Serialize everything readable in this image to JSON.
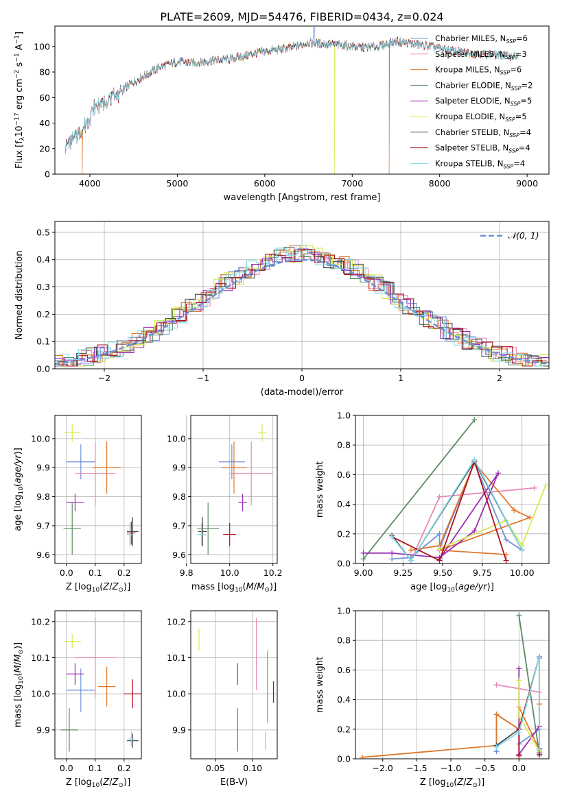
{
  "figure": {
    "title": "PLATE=2609, MJD=54476, FIBERID=0434, z=0.024"
  },
  "series_styles": [
    {
      "name": "Chabrier MILES",
      "nssp": "6",
      "color": "#6f8fd8"
    },
    {
      "name": "Salpeter MILES",
      "nssp": "3",
      "color": "#e88ab7"
    },
    {
      "name": "Kroupa MILES",
      "nssp": "6",
      "color": "#e0782a"
    },
    {
      "name": "Chabrier ELODIE",
      "nssp": "2",
      "color": "#5a8a5f"
    },
    {
      "name": "Salpeter ELODIE",
      "nssp": "5",
      "color": "#9b2db5"
    },
    {
      "name": "Kroupa ELODIE",
      "nssp": "5",
      "color": "#d4ea50"
    },
    {
      "name": "Chabrier STELIB",
      "nssp": "4",
      "color": "#4a4a4a"
    },
    {
      "name": "Salpeter STELIB",
      "nssp": "4",
      "color": "#b01020"
    },
    {
      "name": "Kroupa STELIB",
      "nssp": "4",
      "color": "#80d8e8"
    }
  ],
  "chart_data": [
    {
      "id": "spectrum",
      "type": "line",
      "xlabel": "wavelength [Angstrom, rest frame]",
      "ylabel": "Flux [f",
      "xlim": [
        3600,
        9250
      ],
      "ylim": [
        0,
        116
      ],
      "xticks": [
        4000,
        5000,
        6000,
        7000,
        8000,
        9000
      ],
      "yticks": [
        0,
        20,
        40,
        60,
        80,
        100
      ],
      "series": [
        {
          "name": "Chabrier MILES",
          "x": [
            3720,
            3850,
            3950,
            4050,
            4200,
            4300,
            4450,
            4600,
            4800,
            5000,
            5200,
            5400,
            5600,
            5800,
            5900,
            6100,
            6300,
            6500,
            6700,
            6900,
            7100,
            7300,
            7500,
            7700,
            7900,
            8100,
            8300,
            8500,
            8700,
            8900
          ],
          "y": [
            22,
            30,
            38,
            52,
            58,
            62,
            70,
            76,
            84,
            88,
            87,
            89,
            90,
            93,
            95,
            97,
            99,
            103,
            102,
            101,
            99,
            100,
            104,
            102,
            100,
            97,
            95,
            94,
            93,
            92
          ]
        },
        {
          "name": "Kroupa STELIB",
          "x": [
            3720,
            3850,
            3950,
            4050,
            4200,
            4300,
            4450,
            4600,
            4800,
            5000,
            5200,
            5400,
            5600,
            5800,
            5900,
            6100,
            6300,
            6500,
            6700,
            6900,
            7100,
            7300,
            7500,
            7700,
            7900,
            8100,
            8300,
            8500,
            8700,
            8900
          ],
          "y": [
            21,
            31,
            37,
            50,
            57,
            61,
            69,
            75,
            83,
            87,
            86,
            88,
            89,
            92,
            94,
            96,
            98,
            102,
            101,
            100,
            98,
            99,
            103,
            101,
            99,
            96,
            94,
            93,
            92,
            91
          ]
        }
      ]
    },
    {
      "id": "residual-histogram",
      "type": "bar",
      "xlabel": "(data-model)/error",
      "ylabel": "Normed distribution",
      "xlim": [
        -2.5,
        2.5
      ],
      "ylim": [
        0,
        0.54
      ],
      "xticks": [
        -2,
        -1,
        0,
        1,
        2
      ],
      "yticks": [
        0.0,
        0.1,
        0.2,
        0.3,
        0.4,
        0.5
      ],
      "legend": "N(0,1)",
      "normal_mu": 0,
      "normal_sigma": 1
    },
    {
      "id": "age-vs-Z",
      "type": "scatter",
      "xlabel": "Z [log",
      "ylabel": "age  [log",
      "xlim": [
        -0.04,
        0.26
      ],
      "ylim": [
        9.57,
        10.08
      ],
      "xticks": [
        0.0,
        0.1,
        0.2
      ],
      "yticks": [
        9.6,
        9.7,
        9.8,
        9.9,
        10.0
      ],
      "points": [
        {
          "s": 0,
          "x": 0.05,
          "y": 9.92,
          "xe": 0.05,
          "ye": 0.06
        },
        {
          "s": 1,
          "x": 0.1,
          "y": 9.88,
          "xe": 0.07,
          "ye": 0.11
        },
        {
          "s": 2,
          "x": 0.14,
          "y": 9.9,
          "xe": 0.05,
          "ye": 0.09
        },
        {
          "s": 3,
          "x": 0.02,
          "y": 9.69,
          "xe": 0.03,
          "ye": 0.09
        },
        {
          "s": 4,
          "x": 0.03,
          "y": 9.78,
          "xe": 0.03,
          "ye": 0.03
        },
        {
          "s": 5,
          "x": 0.02,
          "y": 10.02,
          "xe": 0.03,
          "ye": 0.03
        },
        {
          "s": 6,
          "x": 0.23,
          "y": 9.68,
          "xe": 0.02,
          "ye": 0.05
        },
        {
          "s": 7,
          "x": 0.225,
          "y": 9.675,
          "xe": 0.015,
          "ye": 0.04
        },
        {
          "s": 8,
          "x": 0.22,
          "y": 9.67,
          "xe": 0.01,
          "ye": 0.04
        }
      ]
    },
    {
      "id": "age-vs-mass",
      "type": "scatter",
      "xlabel": "mass [log",
      "ylabel": "",
      "xlim": [
        9.82,
        10.22
      ],
      "ylim": [
        9.57,
        10.08
      ],
      "xticks": [
        9.8,
        10.0,
        10.2
      ],
      "yticks": [
        9.6,
        9.7,
        9.8,
        9.9,
        10.0
      ],
      "points": [
        {
          "s": 0,
          "x": 10.01,
          "y": 9.92,
          "xe": 0.06,
          "ye": 0.06
        },
        {
          "s": 1,
          "x": 10.1,
          "y": 9.88,
          "xe": 0.1,
          "ye": 0.11
        },
        {
          "s": 2,
          "x": 10.02,
          "y": 9.9,
          "xe": 0.06,
          "ye": 0.09
        },
        {
          "s": 3,
          "x": 9.9,
          "y": 9.69,
          "xe": 0.05,
          "ye": 0.09
        },
        {
          "s": 4,
          "x": 10.06,
          "y": 9.78,
          "xe": 0.02,
          "ye": 0.03
        },
        {
          "s": 5,
          "x": 10.15,
          "y": 10.02,
          "xe": 0.02,
          "ye": 0.03
        },
        {
          "s": 6,
          "x": 9.875,
          "y": 9.68,
          "xe": 0.02,
          "ye": 0.05
        },
        {
          "s": 7,
          "x": 10.0,
          "y": 9.67,
          "xe": 0.03,
          "ye": 0.04
        },
        {
          "s": 8,
          "x": 9.87,
          "y": 9.67,
          "xe": 0.02,
          "ye": 0.04
        }
      ]
    },
    {
      "id": "weight-vs-age",
      "type": "line",
      "xlabel": "age  [log",
      "ylabel": "mass weight",
      "xlim": [
        8.95,
        10.17
      ],
      "ylim": [
        0.0,
        1.0
      ],
      "xticks": [
        9.0,
        9.25,
        9.5,
        9.75,
        10.0
      ],
      "yticks": [
        0.0,
        0.2,
        0.4,
        0.6,
        0.8,
        1.0
      ],
      "series": [
        {
          "s": 0,
          "x": [
            9.18,
            9.3,
            9.48,
            9.48,
            9.7,
            9.9,
            10.0
          ],
          "y": [
            0.03,
            0.04,
            0.2,
            0.1,
            0.68,
            0.16,
            0.09
          ]
        },
        {
          "s": 1,
          "x": [
            9.3,
            9.48,
            10.08
          ],
          "y": [
            0.02,
            0.45,
            0.51
          ]
        },
        {
          "s": 2,
          "x": [
            9.3,
            9.48,
            9.7,
            9.95,
            10.05,
            9.48,
            9.9
          ],
          "y": [
            0.09,
            0.12,
            0.68,
            0.36,
            0.31,
            0.09,
            0.06
          ]
        },
        {
          "s": 3,
          "x": [
            9.0,
            9.7
          ],
          "y": [
            0.03,
            0.97
          ]
        },
        {
          "s": 4,
          "x": [
            9.0,
            9.18,
            9.48,
            9.7,
            9.85,
            9.48
          ],
          "y": [
            0.07,
            0.07,
            0.04,
            0.22,
            0.61,
            0.03
          ]
        },
        {
          "s": 5,
          "x": [
            9.48,
            9.9,
            10.0,
            10.15
          ],
          "y": [
            0.1,
            0.29,
            0.12,
            0.53
          ]
        },
        {
          "s": 6,
          "x": [
            9.18,
            9.3,
            9.7,
            10.0
          ],
          "y": [
            0.19,
            0.02,
            0.69,
            0.09
          ]
        },
        {
          "s": 7,
          "x": [
            9.18,
            9.48,
            9.7,
            9.9
          ],
          "y": [
            0.18,
            0.02,
            0.69,
            0.02
          ]
        },
        {
          "s": 8,
          "x": [
            9.18,
            9.3,
            9.7,
            10.0
          ],
          "y": [
            0.18,
            0.02,
            0.7,
            0.09
          ]
        }
      ]
    },
    {
      "id": "mass-vs-Z",
      "type": "scatter",
      "xlabel": "Z [log",
      "ylabel": "mass [log",
      "xlim": [
        -0.04,
        0.26
      ],
      "ylim": [
        9.82,
        10.23
      ],
      "xticks": [
        0.0,
        0.1,
        0.2
      ],
      "yticks": [
        9.9,
        10.0,
        10.1,
        10.2
      ],
      "points": [
        {
          "s": 0,
          "x": 0.05,
          "y": 10.01,
          "xe": 0.05,
          "ye": 0.06
        },
        {
          "s": 1,
          "x": 0.1,
          "y": 10.1,
          "xe": 0.07,
          "ye": 0.11
        },
        {
          "s": 2,
          "x": 0.14,
          "y": 10.02,
          "xe": 0.03,
          "ye": 0.055
        },
        {
          "s": 3,
          "x": 0.01,
          "y": 9.9,
          "xe": 0.03,
          "ye": 0.06
        },
        {
          "s": 4,
          "x": 0.03,
          "y": 10.055,
          "xe": 0.03,
          "ye": 0.03
        },
        {
          "s": 5,
          "x": 0.02,
          "y": 10.145,
          "xe": 0.03,
          "ye": 0.02
        },
        {
          "s": 6,
          "x": 0.23,
          "y": 9.87,
          "xe": 0.02,
          "ye": 0.02
        },
        {
          "s": 7,
          "x": 0.23,
          "y": 10.0,
          "xe": 0.03,
          "ye": 0.04
        },
        {
          "s": 8,
          "x": 0.225,
          "y": 9.875,
          "xe": 0.01,
          "ye": 0.02
        }
      ]
    },
    {
      "id": "mass-vs-ebv",
      "type": "scatter",
      "xlabel": "E(B-V)",
      "ylabel": "",
      "xlim": [
        0.017,
        0.133
      ],
      "ylim": [
        9.82,
        10.23
      ],
      "xticks": [
        0.05,
        0.1
      ],
      "yticks": [
        9.9,
        10.0,
        10.1,
        10.2
      ],
      "points": [
        {
          "s": 1,
          "x": 0.105,
          "y": 10.11,
          "xe": 0.0,
          "ye": 0.1
        },
        {
          "s": 2,
          "x": 0.12,
          "y": 10.02,
          "xe": 0.0,
          "ye": 0.1
        },
        {
          "s": 3,
          "x": 0.08,
          "y": 9.9,
          "xe": 0.0,
          "ye": 0.06
        },
        {
          "s": 4,
          "x": 0.08,
          "y": 10.055,
          "xe": 0.0,
          "ye": 0.03
        },
        {
          "s": 5,
          "x": 0.028,
          "y": 10.15,
          "xe": 0.0,
          "ye": 0.03
        },
        {
          "s": 7,
          "x": 0.128,
          "y": 10.005,
          "xe": 0.0,
          "ye": 0.03
        },
        {
          "s": 8,
          "x": 0.117,
          "y": 9.87,
          "xe": 0.0,
          "ye": 0.025
        }
      ]
    },
    {
      "id": "weight-vs-Z",
      "type": "line",
      "xlabel": "Z [log",
      "ylabel": "mass weight",
      "xlim": [
        -2.4,
        0.44
      ],
      "ylim": [
        0.0,
        1.0
      ],
      "xticks": [
        -2.0,
        -1.5,
        -1.0,
        -0.5,
        0.0
      ],
      "yticks": [
        0.0,
        0.2,
        0.4,
        0.6,
        0.8,
        1.0
      ],
      "series": [
        {
          "s": 0,
          "x": [
            -0.33,
            -0.33,
            0.0,
            0.0,
            0.3,
            0.3
          ],
          "y": [
            0.05,
            0.3,
            0.2,
            0.1,
            0.2,
            0.68
          ]
        },
        {
          "s": 1,
          "x": [
            -0.33,
            0.3,
            0.3
          ],
          "y": [
            0.5,
            0.45,
            0.02
          ]
        },
        {
          "s": 2,
          "x": [
            -2.3,
            -0.33,
            -0.33,
            0.0,
            0.0,
            0.3,
            0.3
          ],
          "y": [
            0.01,
            0.09,
            0.3,
            0.2,
            0.35,
            0.06,
            0.37
          ]
        },
        {
          "s": 3,
          "x": [
            0.0,
            0.3
          ],
          "y": [
            0.97,
            0.03
          ]
        },
        {
          "s": 4,
          "x": [
            0.0,
            0.0,
            0.3,
            0.3
          ],
          "y": [
            0.61,
            0.03,
            0.22,
            0.07
          ]
        },
        {
          "s": 5,
          "x": [
            0.0,
            0.0,
            0.3
          ],
          "y": [
            0.53,
            0.29,
            0.05
          ]
        },
        {
          "s": 6,
          "x": [
            -0.33,
            0.0,
            0.3,
            0.3
          ],
          "y": [
            0.09,
            0.2,
            0.69,
            0.03
          ]
        },
        {
          "s": 7,
          "x": [
            0.0,
            0.0,
            0.3,
            0.3
          ],
          "y": [
            0.02,
            0.2,
            0.69,
            0.04
          ]
        },
        {
          "s": 8,
          "x": [
            -0.33,
            0.0,
            0.3,
            0.3
          ],
          "y": [
            0.08,
            0.18,
            0.69,
            0.06
          ]
        }
      ]
    }
  ]
}
